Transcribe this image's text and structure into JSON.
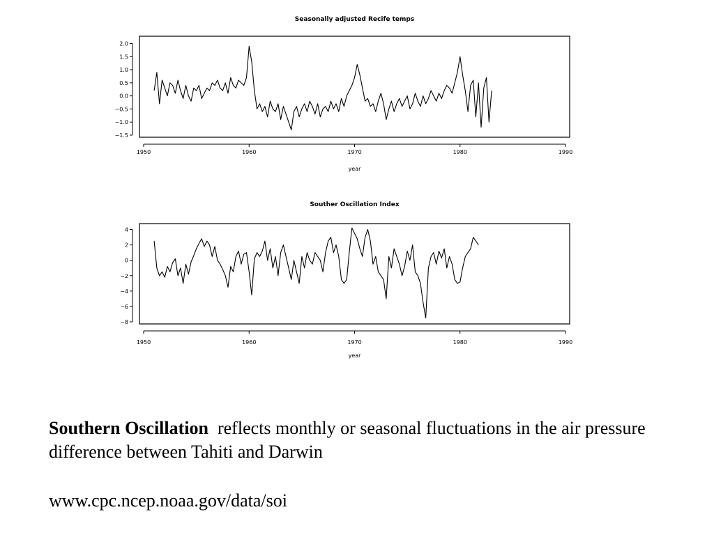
{
  "chart_data": [
    {
      "type": "line",
      "title": "Seasonally adjusted Recife temps",
      "xlabel": "year",
      "ylabel": "",
      "xlim": [
        1950,
        1990
      ],
      "ylim": [
        -1.5,
        2.2
      ],
      "xticks": [
        1950,
        1960,
        1970,
        1980,
        1990
      ],
      "yticks": [
        -1.5,
        -1.0,
        -0.5,
        0.0,
        0.5,
        1.0,
        1.5,
        2.0
      ],
      "ytick_labels": [
        "−1.5",
        "−1.0",
        "−0.5",
        "0.0",
        "0.5",
        "1.0",
        "1.5",
        "2.0"
      ],
      "x_start": 1951.0,
      "x_step": 0.25,
      "series": [
        {
          "values": [
            0.2,
            0.9,
            -0.3,
            0.6,
            0.3,
            0.0,
            0.5,
            0.4,
            0.1,
            0.6,
            0.2,
            -0.1,
            0.4,
            0.0,
            -0.2,
            0.3,
            0.2,
            0.4,
            -0.1,
            0.1,
            0.3,
            0.2,
            0.5,
            0.4,
            0.6,
            0.3,
            0.2,
            0.5,
            0.1,
            0.7,
            0.4,
            0.3,
            0.6,
            0.5,
            0.4,
            0.7,
            1.9,
            1.3,
            0.2,
            -0.5,
            -0.3,
            -0.6,
            -0.4,
            -0.8,
            -0.2,
            -0.5,
            -0.6,
            -0.3,
            -0.9,
            -0.4,
            -0.7,
            -1.0,
            -1.3,
            -0.6,
            -0.4,
            -0.8,
            -0.5,
            -0.3,
            -0.6,
            -0.2,
            -0.4,
            -0.7,
            -0.3,
            -0.8,
            -0.5,
            -0.4,
            -0.6,
            -0.2,
            -0.5,
            -0.3,
            -0.6,
            -0.1,
            -0.4,
            0.0,
            0.2,
            0.4,
            0.7,
            1.2,
            0.8,
            0.3,
            -0.2,
            -0.1,
            -0.4,
            -0.3,
            -0.6,
            -0.2,
            0.1,
            -0.3,
            -0.9,
            -0.5,
            -0.2,
            -0.6,
            -0.3,
            -0.1,
            -0.4,
            -0.2,
            0.0,
            -0.5,
            -0.3,
            0.1,
            -0.2,
            -0.4,
            0.0,
            -0.3,
            -0.1,
            0.2,
            0.0,
            -0.2,
            0.1,
            -0.1,
            0.2,
            0.4,
            0.3,
            0.1,
            0.5,
            0.9,
            1.5,
            0.8,
            0.2,
            -0.6,
            0.4,
            0.6,
            -0.8,
            0.5,
            -1.2,
            0.3,
            0.7,
            -1.0,
            0.2
          ]
        }
      ]
    },
    {
      "type": "line",
      "title": "Souther Oscillation Index",
      "xlabel": "year",
      "ylabel": "",
      "xlim": [
        1950,
        1990
      ],
      "ylim": [
        -8,
        4.5
      ],
      "xticks": [
        1950,
        1960,
        1970,
        1980,
        1990
      ],
      "yticks": [
        -8,
        -6,
        -4,
        -2,
        0,
        2,
        4
      ],
      "ytick_labels": [
        "−8",
        "−6",
        "−4",
        "−2",
        "0",
        "2",
        "4"
      ],
      "x_start": 1951.0,
      "x_step": 0.25,
      "series": [
        {
          "values": [
            2.5,
            -1.0,
            -2.0,
            -1.5,
            -2.2,
            -0.8,
            -1.5,
            -0.3,
            0.2,
            -2.0,
            -1.0,
            -3.0,
            -0.5,
            -1.8,
            -0.2,
            0.6,
            1.5,
            2.2,
            2.8,
            1.8,
            2.5,
            2.0,
            0.5,
            1.8,
            0.0,
            -0.5,
            -1.2,
            -2.0,
            -3.5,
            -0.8,
            -1.5,
            0.5,
            1.2,
            -0.5,
            0.8,
            1.0,
            -1.5,
            -4.5,
            0.2,
            1.0,
            0.5,
            1.2,
            2.5,
            0.0,
            1.5,
            -1.0,
            0.5,
            -2.0,
            1.0,
            2.0,
            0.5,
            -1.0,
            -2.5,
            0.0,
            -1.5,
            -3.0,
            0.5,
            -1.0,
            1.0,
            0.0,
            -0.5,
            1.0,
            0.5,
            0.0,
            -1.5,
            1.0,
            2.5,
            3.0,
            1.0,
            2.0,
            0.5,
            -2.5,
            -3.0,
            -2.5,
            1.0,
            4.2,
            3.5,
            2.8,
            1.5,
            0.5,
            3.0,
            4.0,
            2.5,
            -0.5,
            0.5,
            -1.5,
            -2.0,
            -2.5,
            -5.0,
            0.5,
            -1.0,
            1.5,
            0.5,
            -0.5,
            -2.0,
            -0.8,
            1.2,
            0.0,
            2.0,
            -1.5,
            -2.0,
            -3.0,
            -5.5,
            -7.5,
            -1.0,
            0.5,
            1.0,
            -0.5,
            1.2,
            0.3,
            1.5,
            -1.0,
            0.5,
            -0.5,
            -2.5,
            -3.0,
            -2.8,
            -1.0,
            0.5,
            1.0,
            1.5,
            3.0,
            2.5,
            2.0
          ]
        }
      ]
    }
  ],
  "caption": {
    "bold": "Southern Oscillation",
    "text": "reflects monthly or seasonal fluctuations in the air pressure difference between Tahiti and Darwin"
  },
  "url": "www.cpc.ncep.noaa.gov/data/soi"
}
